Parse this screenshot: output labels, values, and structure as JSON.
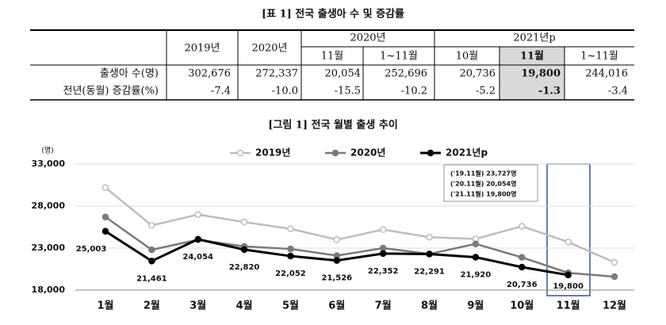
{
  "table": {
    "title": "[표 1] 전국 출생아 수 및 증감률",
    "header1": [
      "2019년",
      "2020년",
      "2020년",
      "2021년p"
    ],
    "header2": [
      "11월",
      "1~11월",
      "10월",
      "11월",
      "1~11월"
    ],
    "rows": [
      [
        "출생아 수(명)",
        "302,676",
        "272,337",
        "20,054",
        "252,696",
        "20,736",
        "19,800",
        "244,016"
      ],
      [
        "전년(동월) 증감률(%)",
        "-7.4",
        "-10.0",
        "-15.5",
        "-10.2",
        "-5.2",
        "-1.3",
        "-3.4"
      ]
    ]
  },
  "chart_data": {
    "type": "line",
    "title": "[그림 1] 전국 월별 출생 추이",
    "ylabel": "(명)",
    "categories": [
      "1월",
      "2월",
      "3월",
      "4월",
      "5월",
      "6월",
      "7월",
      "8월",
      "9월",
      "10월",
      "11월",
      "12월"
    ],
    "ylim": [
      18000,
      33000
    ],
    "yticks": [
      {
        "value": 18000,
        "label": "18,000"
      },
      {
        "value": 23000,
        "label": "23,000"
      },
      {
        "value": 28000,
        "label": "28,000"
      },
      {
        "value": 33000,
        "label": "33,000"
      }
    ],
    "grid": true,
    "series": [
      {
        "name": "2019년",
        "color": "#bdbdbd",
        "values": [
          30200,
          25700,
          27000,
          26100,
          25300,
          24000,
          25200,
          24300,
          24100,
          25600,
          23727,
          21300
        ]
      },
      {
        "name": "2020년",
        "color": "#7a7a7a",
        "values": [
          26700,
          22800,
          24000,
          23200,
          22900,
          22100,
          23000,
          22300,
          23500,
          21900,
          20054,
          19600
        ]
      },
      {
        "name": "2021년p",
        "color": "#000000",
        "values": [
          25003,
          21461,
          24054,
          22820,
          22052,
          21526,
          22352,
          22291,
          21920,
          20736,
          19800,
          null
        ],
        "value_labels": [
          "25,003",
          "21,461",
          "24,054",
          "22,820",
          "22,052",
          "21,526",
          "22,352",
          "22,291",
          "21,920",
          "20,736",
          "19,800",
          null
        ]
      }
    ],
    "annotations": [
      "('19.11월)  23,727명",
      "('20.11월)  20,054명",
      "('21.11월)  19,800명"
    ]
  }
}
